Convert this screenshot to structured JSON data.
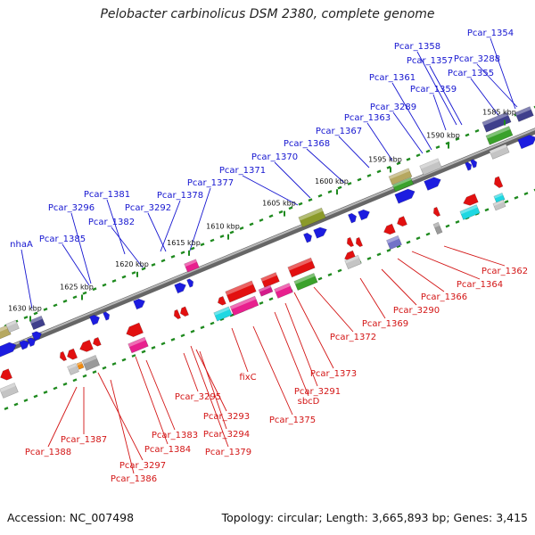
{
  "title": "Pelobacter carbinolicus DSM 2380, complete genome",
  "footer": {
    "accession": "Accession: NC_007498",
    "summary": "Topology: circular; Length: 3,665,893 bp; Genes: 3,415"
  },
  "colors": {
    "forward_label": "#1515d0",
    "reverse_label": "#d31515",
    "backbone": "#8a8a8a",
    "tick": "#1f8a1f"
  },
  "kbp_markers": [
    {
      "label": "1585 kbp"
    },
    {
      "label": "1590 kbp"
    },
    {
      "label": "1595 kbp"
    },
    {
      "label": "1600 kbp"
    },
    {
      "label": "1605 kbp"
    },
    {
      "label": "1610 kbp"
    },
    {
      "label": "1615 kbp"
    },
    {
      "label": "1620 kbp"
    },
    {
      "label": "1625 kbp"
    },
    {
      "label": "1630 kbp"
    }
  ],
  "forward_genes": [
    "Pcar_1354",
    "Pcar_1358",
    "Pcar_3288",
    "Pcar_1357",
    "Pcar_1355",
    "Pcar_1361",
    "Pcar_1359",
    "Pcar_3289",
    "Pcar_1363",
    "Pcar_1367",
    "Pcar_1368",
    "Pcar_1370",
    "Pcar_1371",
    "Pcar_1377",
    "Pcar_1381",
    "Pcar_1378",
    "Pcar_3296",
    "Pcar_3292",
    "Pcar_1382",
    "nhaA",
    "Pcar_1385"
  ],
  "reverse_genes": [
    "Pcar_1362",
    "Pcar_1364",
    "Pcar_1366",
    "Pcar_3290",
    "Pcar_1369",
    "Pcar_1372",
    "Pcar_1373",
    "fixC",
    "Pcar_3291",
    "sbcD",
    "Pcar_1375",
    "Pcar_3295",
    "Pcar_3293",
    "Pcar_3294",
    "Pcar_1379",
    "Pcar_1383",
    "Pcar_1384",
    "Pcar_1387",
    "Pcar_3297",
    "Pcar_1388",
    "Pcar_1386"
  ]
}
